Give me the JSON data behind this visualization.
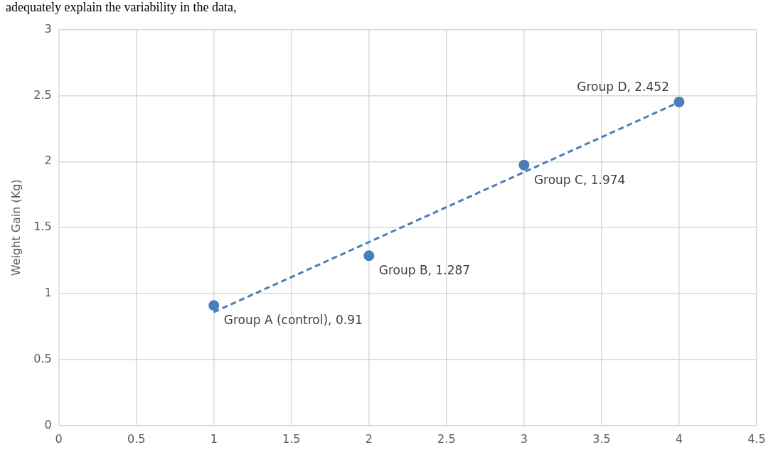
{
  "chart_data": {
    "type": "scatter",
    "ylabel": "Weight Gain (Kg)",
    "xlim": [
      0,
      4.5
    ],
    "xticks": [
      0,
      0.5,
      1,
      1.5,
      2,
      2.5,
      3,
      3.5,
      4,
      4.5
    ],
    "ylim": [
      0,
      3
    ],
    "yticks": [
      0,
      0.5,
      1,
      1.5,
      2,
      2.5,
      3
    ],
    "grid": true,
    "legend": false,
    "series": [
      {
        "color": "#4a7ebb",
        "x": [
          1,
          2,
          3,
          4
        ],
        "values": [
          0.91,
          1.287,
          1.974,
          2.452
        ],
        "marker": "circle"
      },
      {
        "type": "line",
        "color": "#4a7ebb",
        "x": [
          1,
          4
        ],
        "values": [
          0.86,
          2.45
        ],
        "line_style": "dashed",
        "marker": "none"
      }
    ],
    "annotations": [
      "adequately explain the variability in the data,",
      {
        "text": "Group A (control), 0.91",
        "x": 1,
        "y": 0.91
      },
      {
        "text": "Group B, 1.287",
        "x": 2,
        "y": 1.287
      },
      {
        "text": "Group C, 1.974",
        "x": 3,
        "y": 1.974
      },
      {
        "text": "Group D, 2.452",
        "x": 4,
        "y": 2.452
      }
    ]
  }
}
